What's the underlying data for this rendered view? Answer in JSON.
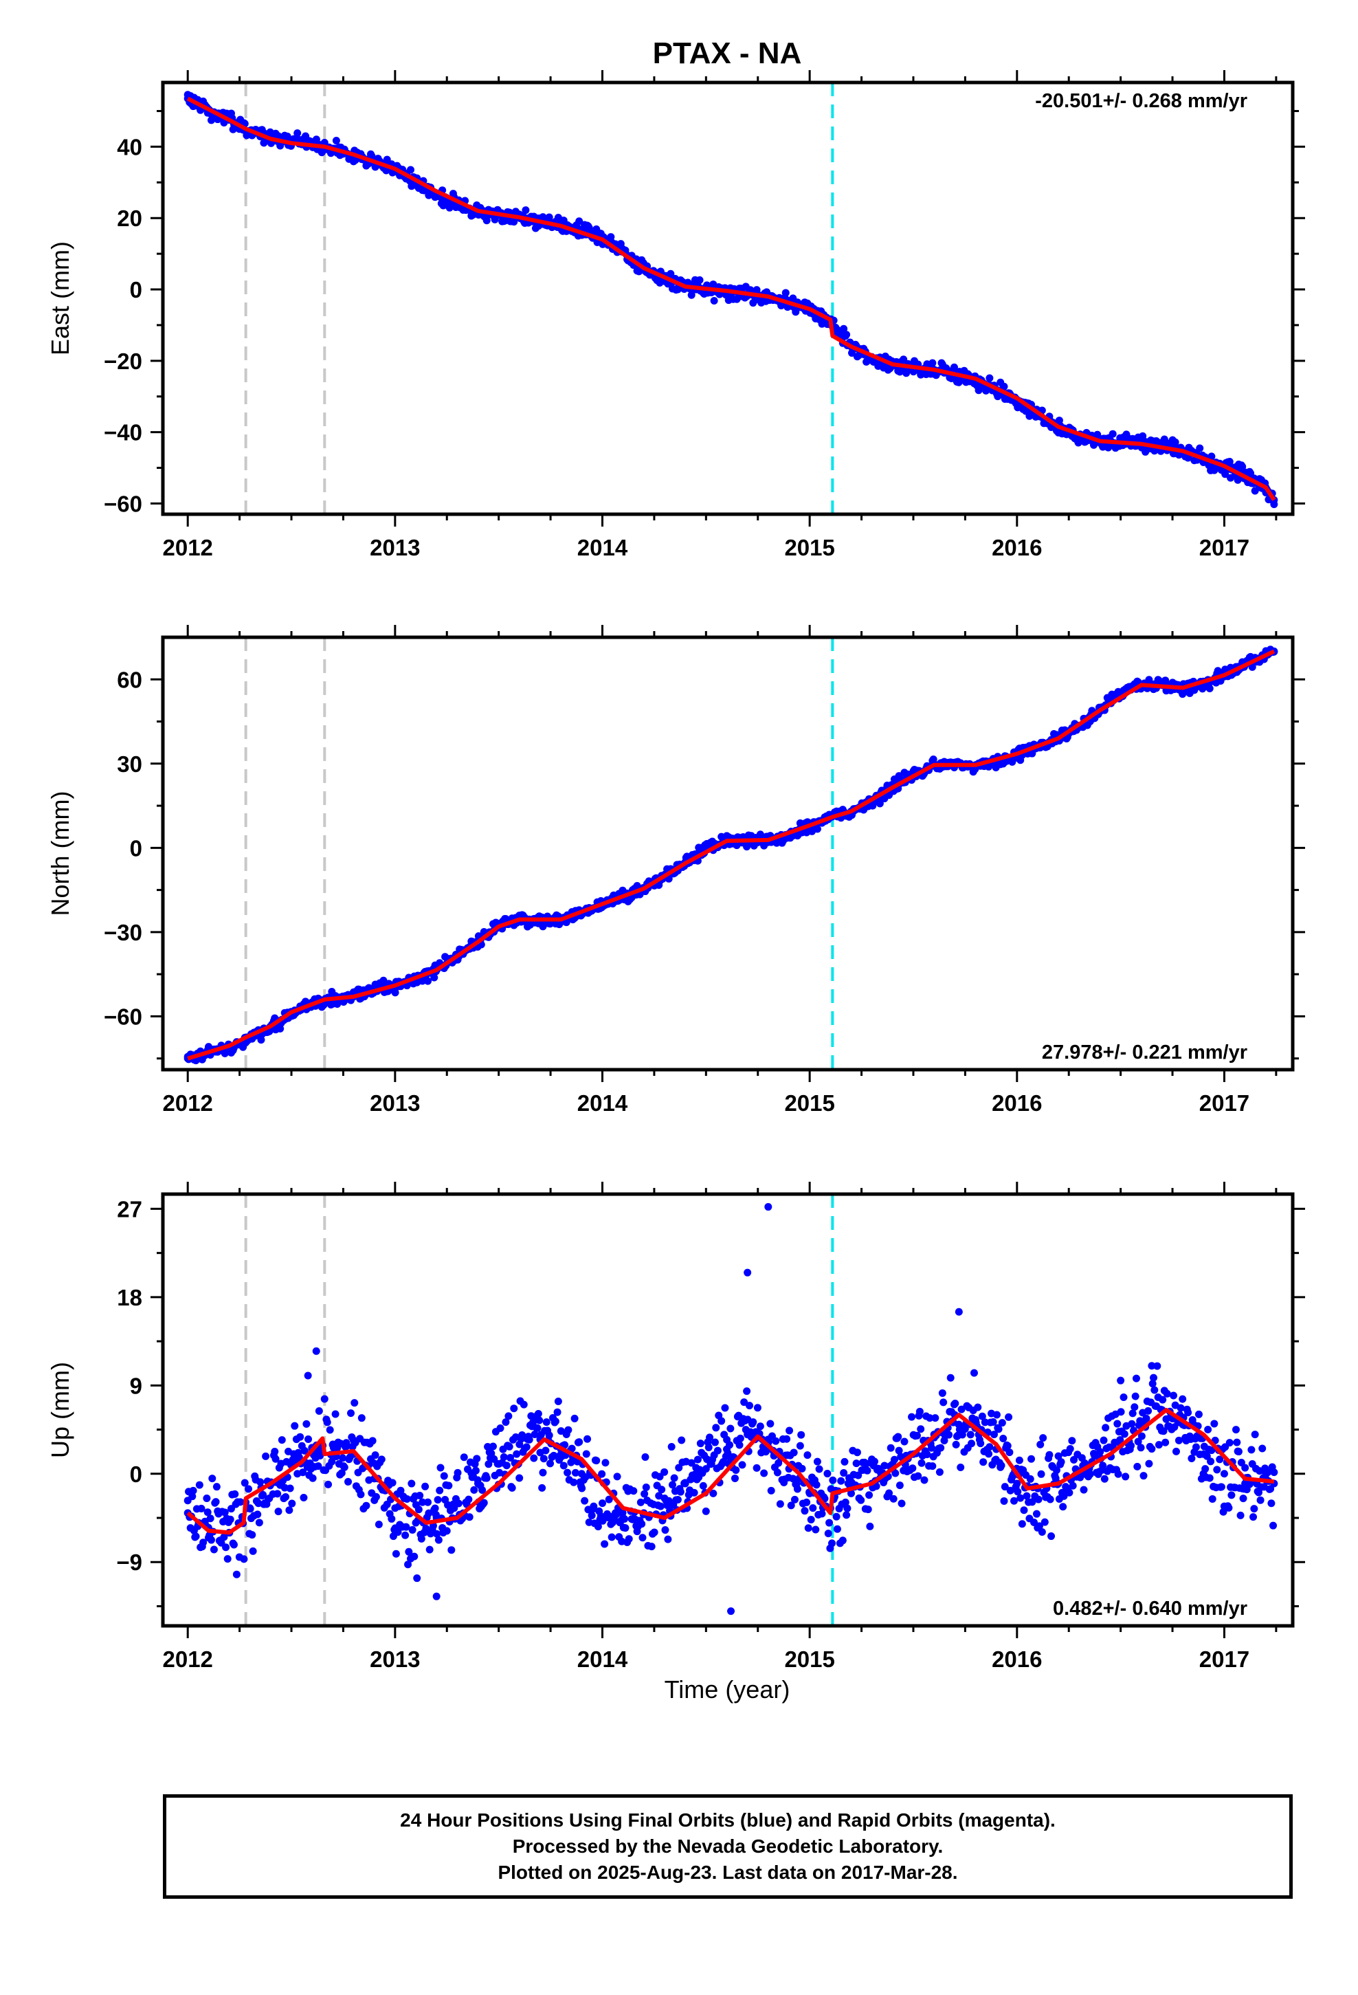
{
  "title": "PTAX - NA",
  "colors": {
    "points": "#0000ff",
    "model": "#ff0000",
    "offset_equipment": "#c8c8c8",
    "offset_event": "#00e5ee",
    "frame": "#000000"
  },
  "offset_lines": {
    "gray": [
      2012.28,
      2012.66
    ],
    "cyan": [
      2015.11
    ]
  },
  "x_tick_labels": [
    "2012",
    "2013",
    "2014",
    "2015",
    "2016",
    "2017"
  ],
  "xlabel": "Time (year)",
  "panels": [
    {
      "key": "east",
      "ylabel": "East (mm)",
      "rate": "-20.501+/- 0.268 mm/yr",
      "rate_position": "top-right"
    },
    {
      "key": "north",
      "ylabel": "North (mm)",
      "rate": "27.978+/- 0.221 mm/yr",
      "rate_position": "bottom-right"
    },
    {
      "key": "up",
      "ylabel": "Up (mm)",
      "rate": "0.482+/- 0.640 mm/yr",
      "rate_position": "bottom-right"
    }
  ],
  "caption": {
    "line1": "24 Hour Positions Using Final Orbits (blue) and Rapid Orbits (magenta).",
    "line2": "Processed by the Nevada Geodetic Laboratory.",
    "line3": "Plotted on 2025-Aug-23. Last data on 2017-Mar-28."
  },
  "chart_data": [
    {
      "type": "scatter",
      "title": "PTAX - NA",
      "xlabel": "",
      "ylabel": "East (mm)",
      "xlim": [
        2011.88,
        2017.33
      ],
      "ylim": [
        -63,
        58
      ],
      "yticks": [
        -60,
        -40,
        -20,
        0,
        20,
        40
      ],
      "ytick_labels": [
        "−60",
        "−40",
        "−20",
        "0",
        "20",
        "40"
      ],
      "xticks": [
        2012,
        2013,
        2014,
        2015,
        2016,
        2017
      ],
      "rate": "-20.501+/- 0.268 mm/yr",
      "grid": false,
      "series": [
        {
          "name": "Final Orbits (blue)",
          "kind": "points",
          "x": [
            2012.0,
            2012.1,
            2012.2,
            2012.3,
            2012.4,
            2012.5,
            2012.6,
            2012.7,
            2012.8,
            2012.9,
            2013.0,
            2013.1,
            2013.2,
            2013.3,
            2013.4,
            2013.5,
            2013.6,
            2013.7,
            2013.8,
            2013.9,
            2014.0,
            2014.1,
            2014.2,
            2014.3,
            2014.4,
            2014.5,
            2014.6,
            2014.7,
            2014.8,
            2014.9,
            2015.0,
            2015.1,
            2015.2,
            2015.3,
            2015.4,
            2015.5,
            2015.6,
            2015.7,
            2015.8,
            2015.9,
            2016.0,
            2016.1,
            2016.2,
            2016.3,
            2016.4,
            2016.5,
            2016.6,
            2016.7,
            2016.8,
            2016.9,
            2017.0,
            2017.1,
            2017.2,
            2017.24
          ],
          "y": [
            53.5,
            50.5,
            47.5,
            44.5,
            42.0,
            41.5,
            40.5,
            39.5,
            37.5,
            36.0,
            33.5,
            30.5,
            27.0,
            24.0,
            21.5,
            20.8,
            20.5,
            19.5,
            18.0,
            16.5,
            14.5,
            10.5,
            6.0,
            2.5,
            0.5,
            -0.2,
            -0.5,
            -1.2,
            -2.2,
            -3.5,
            -5.5,
            -9.0,
            -16.0,
            -19.5,
            -21.0,
            -22.0,
            -22.5,
            -23.5,
            -25.5,
            -28.0,
            -31.0,
            -35.0,
            -39.0,
            -41.0,
            -42.5,
            -43.0,
            -43.5,
            -44.0,
            -45.5,
            -47.5,
            -49.5,
            -52.0,
            -55.5,
            -59.0
          ]
        },
        {
          "name": "model",
          "kind": "line",
          "x": [
            2012.0,
            2012.1,
            2012.2,
            2012.28,
            2012.4,
            2012.5,
            2012.66,
            2012.8,
            2013.0,
            2013.2,
            2013.4,
            2013.6,
            2013.8,
            2014.0,
            2014.2,
            2014.4,
            2014.6,
            2014.8,
            2015.0,
            2015.1,
            2015.11,
            2015.2,
            2015.4,
            2015.6,
            2015.8,
            2016.0,
            2016.2,
            2016.4,
            2016.6,
            2016.8,
            2017.0,
            2017.2,
            2017.24
          ],
          "y": [
            53.5,
            50.5,
            47.5,
            45.0,
            42.2,
            41.0,
            40.0,
            37.8,
            33.8,
            27.5,
            22.0,
            20.2,
            17.8,
            14.0,
            6.0,
            0.8,
            -0.4,
            -2.0,
            -5.5,
            -8.5,
            -13.0,
            -16.0,
            -21.0,
            -22.5,
            -25.0,
            -30.5,
            -38.5,
            -42.5,
            -43.3,
            -45.3,
            -49.5,
            -55.5,
            -59.0
          ]
        }
      ]
    },
    {
      "type": "scatter",
      "title": "",
      "xlabel": "",
      "ylabel": "North (mm)",
      "xlim": [
        2011.88,
        2017.33
      ],
      "ylim": [
        -79,
        75
      ],
      "yticks": [
        -60,
        -30,
        0,
        30,
        60
      ],
      "ytick_labels": [
        "−60",
        "−30",
        "0",
        "30",
        "60"
      ],
      "xticks": [
        2012,
        2013,
        2014,
        2015,
        2016,
        2017
      ],
      "rate": "27.978+/- 0.221 mm/yr",
      "grid": false,
      "series": [
        {
          "name": "Final Orbits (blue)",
          "kind": "points",
          "x": [
            2012.0,
            2012.1,
            2012.2,
            2012.3,
            2012.4,
            2012.5,
            2012.6,
            2012.7,
            2012.8,
            2012.9,
            2013.0,
            2013.1,
            2013.2,
            2013.3,
            2013.4,
            2013.5,
            2013.6,
            2013.7,
            2013.8,
            2013.9,
            2014.0,
            2014.1,
            2014.2,
            2014.3,
            2014.4,
            2014.5,
            2014.6,
            2014.7,
            2014.8,
            2014.9,
            2015.0,
            2015.1,
            2015.2,
            2015.3,
            2015.4,
            2015.5,
            2015.6,
            2015.7,
            2015.8,
            2015.9,
            2016.0,
            2016.1,
            2016.2,
            2016.3,
            2016.4,
            2016.5,
            2016.6,
            2016.7,
            2016.8,
            2016.9,
            2017.0,
            2017.1,
            2017.2,
            2017.24
          ],
          "y": [
            -75.0,
            -73.0,
            -71.0,
            -68.0,
            -64.0,
            -59.0,
            -55.0,
            -53.5,
            -53.0,
            -51.0,
            -49.0,
            -46.5,
            -43.5,
            -39.0,
            -33.0,
            -27.5,
            -25.5,
            -26.0,
            -25.5,
            -23.0,
            -20.0,
            -17.5,
            -14.5,
            -10.5,
            -5.5,
            -0.5,
            2.5,
            3.0,
            2.8,
            4.5,
            8.0,
            11.0,
            13.0,
            16.5,
            21.5,
            26.5,
            29.5,
            30.0,
            29.5,
            30.5,
            33.5,
            36.5,
            39.0,
            43.0,
            49.0,
            55.0,
            58.0,
            58.0,
            57.0,
            58.5,
            61.5,
            65.5,
            68.5,
            70.0
          ]
        },
        {
          "name": "model",
          "kind": "line",
          "x": [
            2012.0,
            2012.2,
            2012.28,
            2012.4,
            2012.5,
            2012.66,
            2012.8,
            2013.0,
            2013.2,
            2013.4,
            2013.5,
            2013.6,
            2013.8,
            2014.0,
            2014.2,
            2014.4,
            2014.6,
            2014.8,
            2015.0,
            2015.11,
            2015.2,
            2015.4,
            2015.6,
            2015.8,
            2016.0,
            2016.2,
            2016.4,
            2016.6,
            2016.8,
            2017.0,
            2017.24
          ],
          "y": [
            -75.0,
            -70.5,
            -67.5,
            -63.5,
            -58.5,
            -54.0,
            -53.0,
            -49.0,
            -43.5,
            -33.5,
            -28.0,
            -25.5,
            -25.5,
            -20.0,
            -14.5,
            -5.5,
            2.5,
            2.8,
            8.0,
            11.0,
            13.0,
            21.5,
            29.5,
            29.5,
            33.5,
            39.0,
            49.0,
            58.0,
            57.0,
            61.5,
            70.0
          ]
        }
      ]
    },
    {
      "type": "scatter",
      "title": "",
      "xlabel": "Time (year)",
      "ylabel": "Up (mm)",
      "xlim": [
        2011.88,
        2017.33
      ],
      "ylim": [
        -15.5,
        28.5
      ],
      "yticks": [
        -9,
        0,
        9,
        18,
        27
      ],
      "ytick_labels": [
        "−9",
        "0",
        "9",
        "18",
        "27"
      ],
      "xticks": [
        2012,
        2013,
        2014,
        2015,
        2016,
        2017
      ],
      "rate": "0.482+/- 0.640 mm/yr",
      "grid": false,
      "series": [
        {
          "name": "Final Orbits (blue)",
          "kind": "points",
          "x": [
            2012.0,
            2012.1,
            2012.2,
            2012.3,
            2012.4,
            2012.5,
            2012.6,
            2012.7,
            2012.8,
            2012.9,
            2013.0,
            2013.1,
            2013.2,
            2013.3,
            2013.4,
            2013.5,
            2013.6,
            2013.7,
            2013.8,
            2013.9,
            2014.0,
            2014.1,
            2014.2,
            2014.3,
            2014.4,
            2014.5,
            2014.6,
            2014.7,
            2014.8,
            2014.9,
            2015.0,
            2015.1,
            2015.2,
            2015.3,
            2015.4,
            2015.5,
            2015.6,
            2015.7,
            2015.8,
            2015.9,
            2016.0,
            2016.1,
            2016.2,
            2016.3,
            2016.4,
            2016.5,
            2016.6,
            2016.7,
            2016.8,
            2016.9,
            2017.0,
            2017.1,
            2017.2,
            2017.24,
            2012.62,
            2012.58,
            2014.7,
            2014.8,
            2015.72,
            2016.5,
            2016.65,
            2014.62,
            2013.2
          ],
          "y": [
            -4.0,
            -5.5,
            -6.0,
            -3.5,
            -1.0,
            1.0,
            2.5,
            3.0,
            2.0,
            -0.5,
            -3.5,
            -5.0,
            -4.5,
            -3.0,
            -1.0,
            1.0,
            3.0,
            3.5,
            2.5,
            0.0,
            -3.0,
            -4.5,
            -4.0,
            -2.5,
            -1.0,
            0.5,
            2.5,
            4.0,
            3.5,
            0.5,
            -2.0,
            -3.5,
            -2.0,
            -1.0,
            0.5,
            2.0,
            4.0,
            6.0,
            5.5,
            2.5,
            -1.0,
            -1.5,
            -1.0,
            0.0,
            1.5,
            3.0,
            5.0,
            6.5,
            5.0,
            2.0,
            0.0,
            -1.0,
            -0.5,
            -1.0,
            12.5,
            10.0,
            20.5,
            27.2,
            16.5,
            9.5,
            11.0,
            -14.0,
            -12.5
          ]
        },
        {
          "name": "model",
          "kind": "line",
          "x": [
            2012.0,
            2012.1,
            2012.2,
            2012.27,
            2012.28,
            2012.4,
            2012.55,
            2012.65,
            2012.66,
            2012.8,
            2013.0,
            2013.15,
            2013.3,
            2013.5,
            2013.72,
            2013.9,
            2014.1,
            2014.3,
            2014.5,
            2014.75,
            2014.95,
            2015.1,
            2015.11,
            2015.3,
            2015.5,
            2015.72,
            2015.9,
            2016.05,
            2016.2,
            2016.45,
            2016.72,
            2016.9,
            2017.1,
            2017.24
          ],
          "y": [
            -4.0,
            -5.8,
            -6.0,
            -5.0,
            -2.5,
            -1.0,
            1.2,
            3.6,
            2.0,
            2.3,
            -2.5,
            -5.0,
            -4.5,
            -1.0,
            3.5,
            1.5,
            -3.5,
            -4.5,
            -2.0,
            3.8,
            0.0,
            -4.0,
            -2.0,
            -1.0,
            2.0,
            6.0,
            3.0,
            -1.5,
            -1.0,
            2.0,
            6.5,
            4.0,
            -0.5,
            -0.8
          ]
        }
      ]
    }
  ]
}
